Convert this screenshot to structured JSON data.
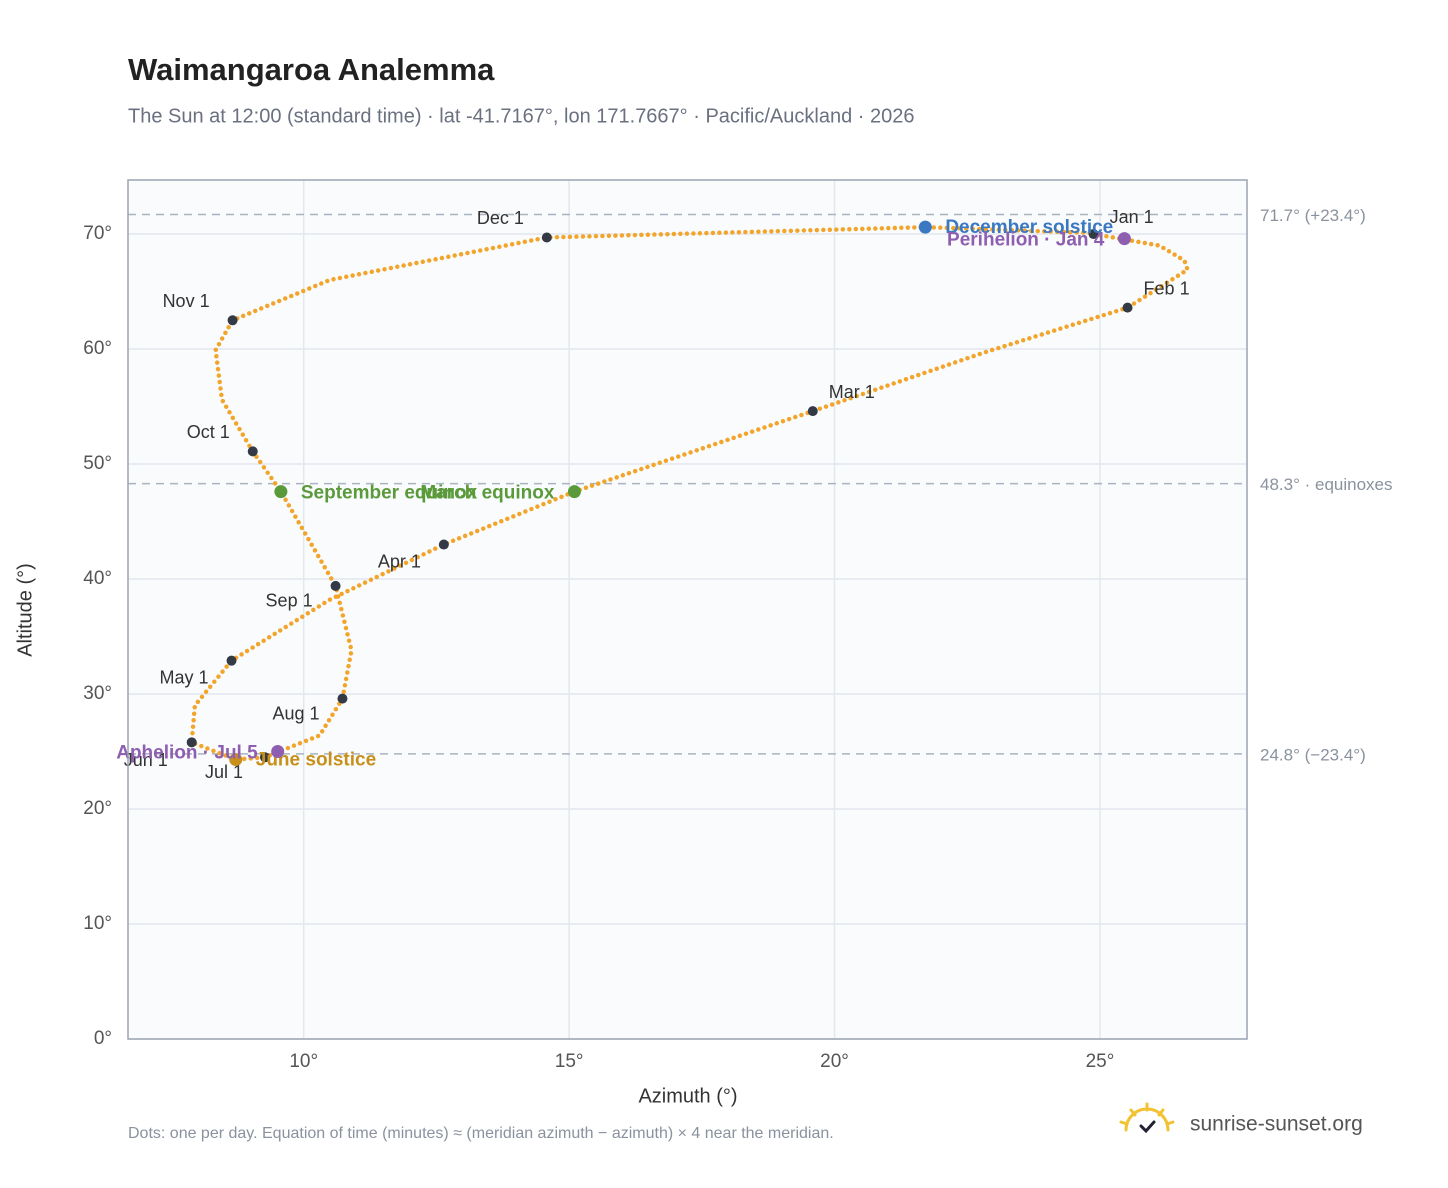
{
  "chart_data": {
    "type": "analemma",
    "title": "Waimangaroa Analemma",
    "subtitle": "The Sun at 12:00 (standard time) · lat -41.7167°, lon 171.7667° · Pacific/Auckland · 2026",
    "x_label": "Azimuth (°)",
    "y_label": "Altitude (°)",
    "xlim": [
      6.69,
      27.77
    ],
    "ylim": [
      0,
      74.7
    ],
    "xticks": [
      {
        "value": 10,
        "label": "10°"
      },
      {
        "value": 15,
        "label": "15°"
      },
      {
        "value": 20,
        "label": "20°"
      },
      {
        "value": 25,
        "label": "25°"
      }
    ],
    "yticks": [
      {
        "value": 0,
        "label": "0°"
      },
      {
        "value": 10,
        "label": "10°"
      },
      {
        "value": 20,
        "label": "20°"
      },
      {
        "value": 30,
        "label": "30°"
      },
      {
        "value": 40,
        "label": "40°"
      },
      {
        "value": 50,
        "label": "50°"
      },
      {
        "value": 60,
        "label": "60°"
      },
      {
        "value": 70,
        "label": "70°"
      }
    ],
    "grid": true,
    "path": {
      "color": "#f2a52a",
      "x": [
        24.88,
        26.12,
        26.59,
        26.65,
        25.52,
        22.82,
        19.59,
        15.1,
        12.64,
        10.49,
        8.64,
        7.95,
        7.89,
        8.72,
        9.27,
        10.3,
        10.73,
        10.9,
        10.6,
        9.57,
        9.04,
        8.46,
        8.34,
        8.66,
        10.49,
        14.58,
        21.71,
        24.8
      ],
      "y": [
        70.0,
        69.0,
        67.7,
        66.9,
        63.6,
        59.7,
        54.6,
        47.6,
        43.0,
        38.2,
        32.9,
        29.0,
        25.8,
        24.3,
        24.5,
        26.4,
        29.6,
        33.8,
        39.4,
        47.6,
        51.1,
        55.6,
        59.9,
        62.5,
        66.0,
        69.7,
        70.6,
        70.1
      ]
    },
    "months": {
      "color": "#333a45",
      "labels": [
        "Jan 1",
        "Feb 1",
        "Mar 1",
        "Apr 1",
        "May 1",
        "Jun 1",
        "Jul 1",
        "Aug 1",
        "Sep 1",
        "Oct 1",
        "Nov 1",
        "Dec 1"
      ],
      "x": [
        24.88,
        25.52,
        19.59,
        12.64,
        8.64,
        7.89,
        9.27,
        10.73,
        10.6,
        9.04,
        8.66,
        14.58
      ],
      "y": [
        70.0,
        63.6,
        54.6,
        43.0,
        32.9,
        25.8,
        24.5,
        29.6,
        39.4,
        51.1,
        62.5,
        69.7
      ]
    },
    "events": [
      {
        "name": "December solstice",
        "color": "#3a78c2",
        "x": 21.71,
        "y": 70.6
      },
      {
        "name": "Perihelion · Jan 4",
        "color": "#8e5fb0",
        "x": 25.46,
        "y": 69.6
      },
      {
        "name": "March equinox",
        "color": "#5a9a3a",
        "x": 15.1,
        "y": 47.6
      },
      {
        "name": "September equinox",
        "color": "#5a9a3a",
        "x": 9.57,
        "y": 47.6
      },
      {
        "name": "June solstice",
        "color": "#c8901a",
        "x": 8.72,
        "y": 24.3
      },
      {
        "name": "Aphelion · Jul 5",
        "color": "#8e5fb0",
        "x": 9.51,
        "y": 25.0
      }
    ],
    "reference_lines": [
      {
        "value": 71.7,
        "label": "71.7° (+23.4°)"
      },
      {
        "value": 48.3,
        "label": "48.3° · equinoxes"
      },
      {
        "value": 24.8,
        "label": "24.8° (−23.4°)"
      }
    ],
    "footnote": "Dots: one per day. Equation of time (minutes) ≈ (meridian azimuth − azimuth) × 4 near the meridian.",
    "brand": "sunrise-sunset.org"
  }
}
